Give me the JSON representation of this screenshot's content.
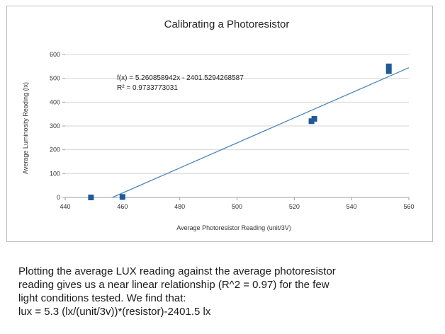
{
  "chart_data": {
    "type": "scatter",
    "title": "Calibrating a Photoresistor",
    "xlabel": "Average Photoresistor Reading (unit/3V)",
    "ylabel": "Average Luminosity Reading (lx)",
    "xlim": [
      440,
      560
    ],
    "ylim": [
      0,
      600
    ],
    "xticks": [
      "440",
      "460",
      "480",
      "500",
      "520",
      "540",
      "560"
    ],
    "yticks": [
      "0",
      "100",
      "200",
      "300",
      "400",
      "500",
      "600"
    ],
    "grid": true,
    "legend": "none",
    "marker_color": "#1f5a9a",
    "trend_color": "#4a86b7",
    "series": [
      {
        "points": [
          {
            "x": 449,
            "y": 0
          },
          {
            "x": 460,
            "y": 2
          },
          {
            "x": 526,
            "y": 320
          },
          {
            "x": 527,
            "y": 330
          },
          {
            "x": 553,
            "y": 530
          },
          {
            "x": 553,
            "y": 550
          }
        ]
      }
    ],
    "trendline": {
      "slope": 5.260858942,
      "intercept": -2401.5294268587,
      "equation": "f(x) = 5.260858942x - 2401.5294268587",
      "r_squared": "R² = 0.9733773031"
    }
  },
  "caption": {
    "line1": "Plotting the average LUX reading against the average photoresistor",
    "line2": "reading gives us a near linear relationship (R^2 = 0.97) for the few",
    "line3": "light conditions tested. We find that:",
    "line4": "lux = 5.3 (lx/(unit/3v))*(resistor)-2401.5 lx"
  }
}
